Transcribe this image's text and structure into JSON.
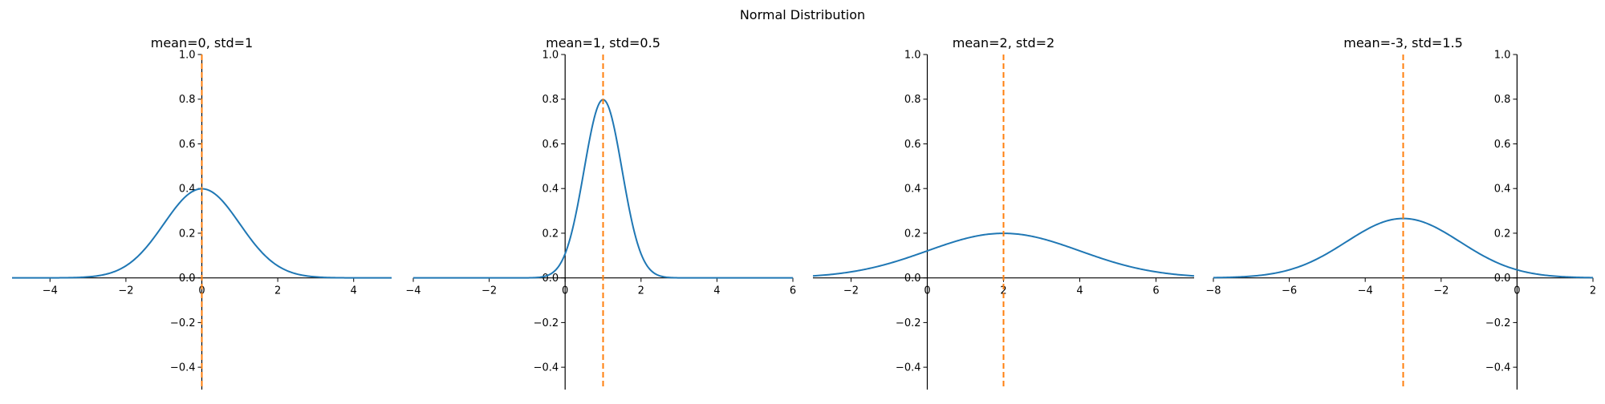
{
  "figure": {
    "suptitle": "Normal Distribution"
  },
  "colors": {
    "curve": "#1f77b4",
    "mean_line": "#ff7f0e",
    "axis": "#000000"
  },
  "chart_data": [
    {
      "type": "line",
      "title": "mean=0, std=1",
      "mean": 0,
      "std": 1,
      "xlim": [
        -5,
        5
      ],
      "ylim": [
        -0.5,
        1.0
      ],
      "x_ticks": [
        -4,
        -2,
        0,
        2,
        4
      ],
      "x_tick_labels": [
        "−4",
        "−2",
        "0",
        "2",
        "4"
      ],
      "y_ticks": [
        -0.4,
        -0.2,
        0.0,
        0.2,
        0.4,
        0.6,
        0.8,
        1.0
      ],
      "y_tick_labels": [
        "−0.4",
        "−0.2",
        "0.0",
        "0.2",
        "0.4",
        "0.6",
        "0.8",
        "1.0"
      ],
      "peak_value": 0.399,
      "grid": false,
      "spines": "centered at zero"
    },
    {
      "type": "line",
      "title": "mean=1, std=0.5",
      "mean": 1,
      "std": 0.5,
      "xlim": [
        -4,
        6
      ],
      "ylim": [
        -0.5,
        1.0
      ],
      "x_ticks": [
        -4,
        -2,
        0,
        2,
        4,
        6
      ],
      "x_tick_labels": [
        "−4",
        "−2",
        "0",
        "2",
        "4",
        "6"
      ],
      "y_ticks": [
        -0.4,
        -0.2,
        0.0,
        0.2,
        0.4,
        0.6,
        0.8,
        1.0
      ],
      "y_tick_labels": [
        "−0.4",
        "−0.2",
        "0.0",
        "0.2",
        "0.4",
        "0.6",
        "0.8",
        "1.0"
      ],
      "peak_value": 0.798,
      "grid": false,
      "spines": "centered at zero"
    },
    {
      "type": "line",
      "title": "mean=2, std=2",
      "mean": 2,
      "std": 2,
      "xlim": [
        -3,
        7
      ],
      "ylim": [
        -0.5,
        1.0
      ],
      "x_ticks": [
        -2,
        0,
        2,
        4,
        6
      ],
      "x_tick_labels": [
        "−2",
        "0",
        "2",
        "4",
        "6"
      ],
      "y_ticks": [
        -0.4,
        -0.2,
        0.0,
        0.2,
        0.4,
        0.6,
        0.8,
        1.0
      ],
      "y_tick_labels": [
        "−0.4",
        "−0.2",
        "0.0",
        "0.2",
        "0.4",
        "0.6",
        "0.8",
        "1.0"
      ],
      "peak_value": 0.199,
      "grid": false,
      "spines": "centered at zero"
    },
    {
      "type": "line",
      "title": "mean=-3, std=1.5",
      "mean": -3,
      "std": 1.5,
      "xlim": [
        -8,
        2
      ],
      "ylim": [
        -0.5,
        1.0
      ],
      "x_ticks": [
        -8,
        -6,
        -4,
        -2,
        0,
        2
      ],
      "x_tick_labels": [
        "−8",
        "−6",
        "−4",
        "−2",
        "0",
        "2"
      ],
      "y_ticks": [
        -0.4,
        -0.2,
        0.0,
        0.2,
        0.4,
        0.6,
        0.8,
        1.0
      ],
      "y_tick_labels": [
        "−0.4",
        "−0.2",
        "0.0",
        "0.2",
        "0.4",
        "0.6",
        "0.8",
        "1.0"
      ],
      "peak_value": 0.266,
      "grid": false,
      "spines": "centered at zero"
    }
  ]
}
